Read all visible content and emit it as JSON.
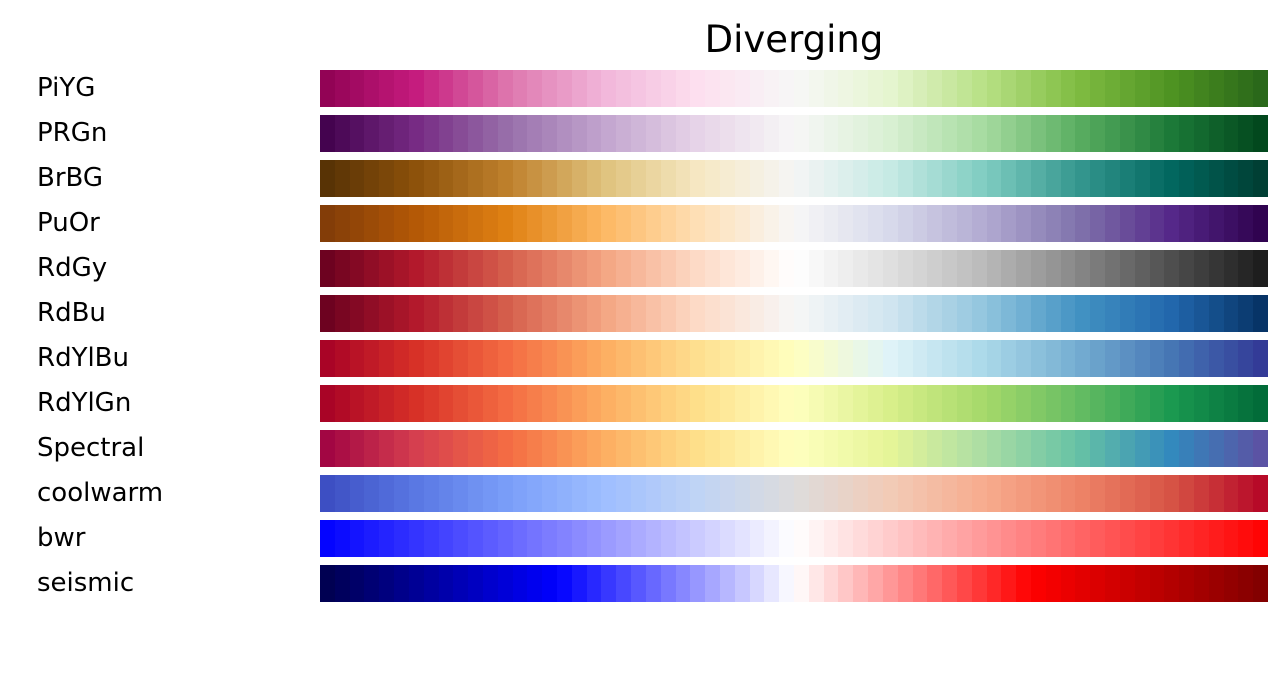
{
  "title": "Diverging",
  "colormaps": [
    {
      "name": "PiYG",
      "stops": [
        "#8e0152",
        "#c51b7d",
        "#de77ae",
        "#f1b6da",
        "#fde0ef",
        "#f7f7f7",
        "#e6f5d0",
        "#b8e186",
        "#7fbc41",
        "#4d9221",
        "#276419"
      ]
    },
    {
      "name": "PRGn",
      "stops": [
        "#40004b",
        "#762a83",
        "#9970ab",
        "#c2a5cf",
        "#e7d4e8",
        "#f7f7f7",
        "#d9f0d3",
        "#a6dba0",
        "#5aae61",
        "#1b7837",
        "#00441b"
      ]
    },
    {
      "name": "BrBG",
      "stops": [
        "#543005",
        "#8c510a",
        "#bf812d",
        "#dfc27d",
        "#f6e8c3",
        "#f5f5f5",
        "#c7eae5",
        "#80cdc1",
        "#35978f",
        "#01665e",
        "#003c30"
      ]
    },
    {
      "name": "PuOr",
      "stops": [
        "#7f3b08",
        "#b35806",
        "#e08214",
        "#fdb863",
        "#fee0b6",
        "#f7f7f7",
        "#d8daeb",
        "#b2abd2",
        "#8073ac",
        "#542788",
        "#2d004b"
      ]
    },
    {
      "name": "RdGy",
      "stops": [
        "#67001f",
        "#b2182b",
        "#d6604d",
        "#f4a582",
        "#fddbc7",
        "#ffffff",
        "#e0e0e0",
        "#bababa",
        "#878787",
        "#4d4d4d",
        "#1a1a1a"
      ]
    },
    {
      "name": "RdBu",
      "stops": [
        "#67001f",
        "#b2182b",
        "#d6604d",
        "#f4a582",
        "#fddbc7",
        "#f7f7f7",
        "#d1e5f0",
        "#92c5de",
        "#4393c3",
        "#2166ac",
        "#053061"
      ]
    },
    {
      "name": "RdYlBu",
      "stops": [
        "#a50026",
        "#d73027",
        "#f46d43",
        "#fdae61",
        "#fee090",
        "#ffffbf",
        "#e0f3f8",
        "#abd9e9",
        "#74add1",
        "#4575b4",
        "#313695"
      ]
    },
    {
      "name": "RdYlGn",
      "stops": [
        "#a50026",
        "#d73027",
        "#f46d43",
        "#fdae61",
        "#fee08b",
        "#ffffbf",
        "#d9ef8b",
        "#a6d96a",
        "#66bd63",
        "#1a9850",
        "#006837"
      ]
    },
    {
      "name": "Spectral",
      "stops": [
        "#9e0142",
        "#d53e4f",
        "#f46d43",
        "#fdae61",
        "#fee08b",
        "#ffffbf",
        "#e6f598",
        "#abdda4",
        "#66c2a5",
        "#3288bd",
        "#5e4fa2"
      ]
    },
    {
      "name": "coolwarm",
      "stops": [
        "#3b4cc0",
        "#5977e3",
        "#7b9ff9",
        "#9ebeff",
        "#c0d4f5",
        "#dddcdc",
        "#f2cbb7",
        "#f7ac8e",
        "#ee8468",
        "#d65244",
        "#b40426"
      ]
    },
    {
      "name": "bwr",
      "stops": [
        "#0000ff",
        "#ffffff",
        "#ff0000"
      ]
    },
    {
      "name": "seismic",
      "stops": [
        "#00004c",
        "#0000ff",
        "#ffffff",
        "#ff0000",
        "#7f0000"
      ]
    }
  ]
}
